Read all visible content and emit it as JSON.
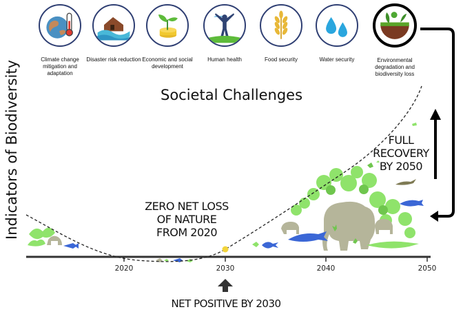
{
  "challenges": [
    {
      "label": "Climate change mitigation and adaptation",
      "icon": "thermometer-earth-icon"
    },
    {
      "label": "Disaster risk reduction",
      "icon": "flooded-house-icon"
    },
    {
      "label": "Economic and social development",
      "icon": "plant-coins-icon"
    },
    {
      "label": "Human health",
      "icon": "person-arms-raised-icon"
    },
    {
      "label": "Food security",
      "icon": "wheat-icon"
    },
    {
      "label": "Water security",
      "icon": "water-drops-icon"
    },
    {
      "label": "Environmental degradation and biodiversity loss",
      "icon": "soil-sprout-icon"
    }
  ],
  "section_title": "Societal Challenges",
  "y_axis_label": "Indicators of Biodiversity",
  "annotations": {
    "zero_net": "ZERO NET LOSS OF NATURE FROM 2020",
    "full_recovery": "FULL RECOVERY BY 2050",
    "net_positive": "NET POSITIVE BY 2030"
  },
  "chart_data": {
    "type": "line",
    "x_ticks": [
      "2020",
      "2030",
      "2040",
      "2050"
    ],
    "xlim": [
      2011,
      2050
    ],
    "marker": {
      "x": 2030,
      "color": "#f2d43c"
    },
    "colors": {
      "curve": "#222222",
      "arrow": "#000000",
      "wildlife_green": "#8fe36b",
      "wildlife_grey": "#b5b59a",
      "fish_blue": "#3b67d6"
    }
  }
}
